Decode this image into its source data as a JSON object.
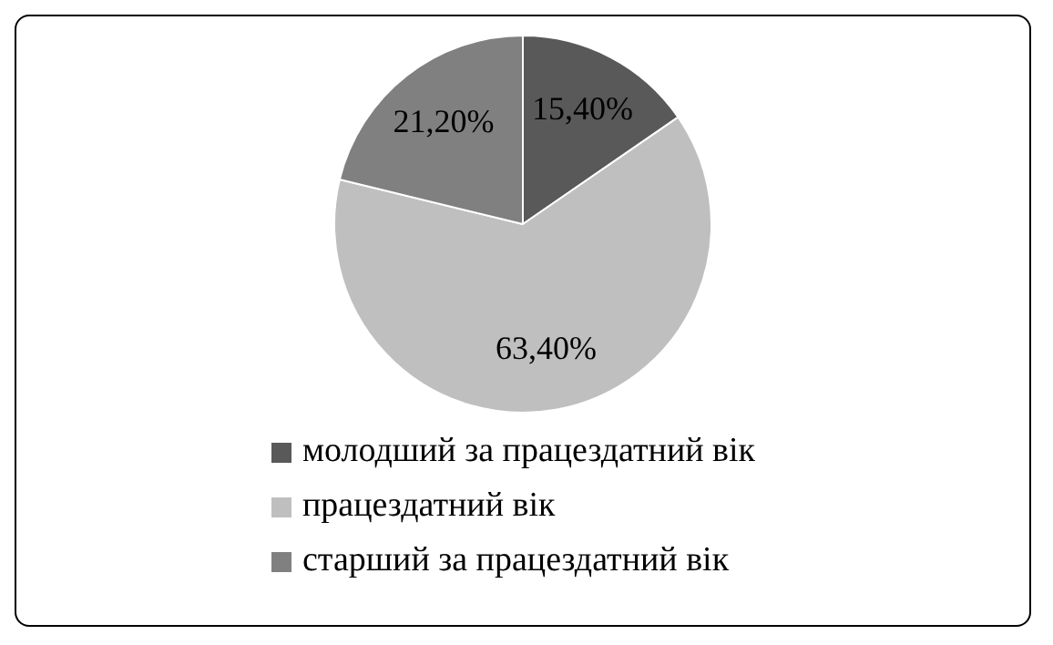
{
  "chart_data": {
    "type": "pie",
    "categories": [
      "молодший за працездатний вік",
      "працездатний вік",
      "старший за працездатний вік"
    ],
    "values": [
      15.4,
      63.4,
      21.2
    ],
    "colors": [
      "#595959",
      "#bfbfbf",
      "#808080"
    ],
    "value_labels": [
      "15,40%",
      "63,40%",
      "21,20%"
    ],
    "legend": "bottom"
  }
}
